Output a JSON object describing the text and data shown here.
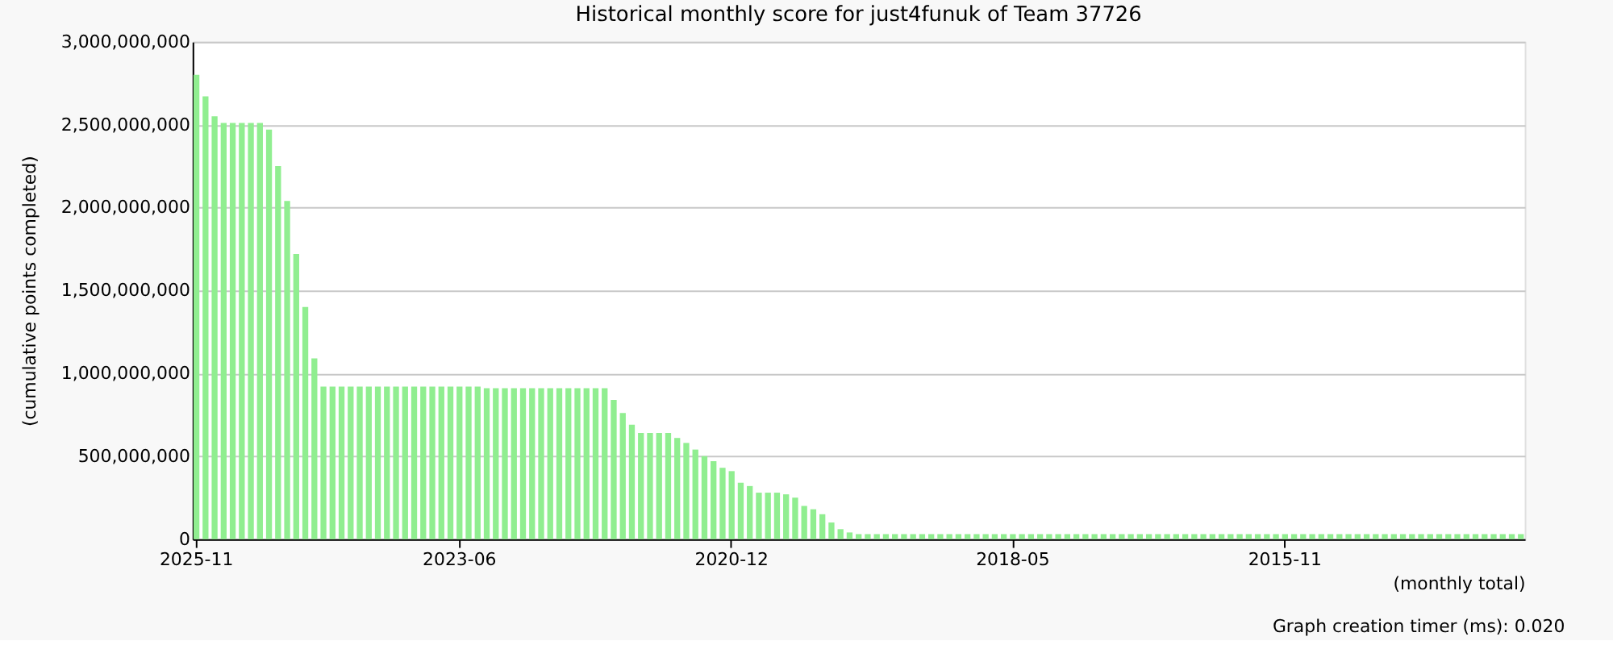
{
  "chart_data": {
    "type": "bar",
    "title": "Historical monthly score for just4funuk of Team 37726",
    "xlabel": "(monthly total)",
    "ylabel": "(cumulative points completed)",
    "annotations": [
      "Graph creation timer (ms): 0.020"
    ],
    "categories": [
      "2025-11",
      null,
      null,
      null,
      null,
      null,
      null,
      null,
      null,
      null,
      null,
      null,
      null,
      null,
      null,
      null,
      null,
      null,
      null,
      null,
      null,
      null,
      null,
      null,
      null,
      null,
      null,
      null,
      null,
      "2023-06",
      null,
      null,
      null,
      null,
      null,
      null,
      null,
      null,
      null,
      null,
      null,
      null,
      null,
      null,
      null,
      null,
      null,
      null,
      null,
      null,
      null,
      null,
      null,
      null,
      null,
      null,
      null,
      null,
      null,
      "2020-12",
      null,
      null,
      null,
      null,
      null,
      null,
      null,
      null,
      null,
      null,
      null,
      null,
      null,
      null,
      null,
      null,
      null,
      null,
      null,
      null,
      null,
      null,
      null,
      null,
      null,
      null,
      null,
      null,
      null,
      null,
      "2018-05",
      null,
      null,
      null,
      null,
      null,
      null,
      null,
      null,
      null,
      null,
      null,
      null,
      null,
      null,
      null,
      null,
      null,
      null,
      null,
      null,
      null,
      null,
      null,
      null,
      null,
      null,
      null,
      null,
      null,
      "2015-11",
      null,
      null,
      null,
      null,
      null,
      null,
      null,
      null,
      null,
      null,
      null,
      null,
      null,
      null,
      null,
      null,
      null,
      null,
      null,
      null,
      null,
      null,
      null,
      null,
      null,
      null
    ],
    "values": [
      2800000000,
      2670000000,
      2550000000,
      2510000000,
      2510000000,
      2510000000,
      2510000000,
      2510000000,
      2470000000,
      2250000000,
      2040000000,
      1720000000,
      1400000000,
      1090000000,
      920000000,
      920000000,
      920000000,
      920000000,
      920000000,
      920000000,
      920000000,
      920000000,
      920000000,
      920000000,
      920000000,
      920000000,
      920000000,
      920000000,
      920000000,
      920000000,
      920000000,
      920000000,
      910000000,
      910000000,
      910000000,
      910000000,
      910000000,
      910000000,
      910000000,
      910000000,
      910000000,
      910000000,
      910000000,
      910000000,
      910000000,
      910000000,
      840000000,
      760000000,
      690000000,
      640000000,
      640000000,
      640000000,
      640000000,
      610000000,
      580000000,
      540000000,
      500000000,
      470000000,
      430000000,
      410000000,
      340000000,
      320000000,
      280000000,
      280000000,
      280000000,
      270000000,
      250000000,
      200000000,
      180000000,
      150000000,
      100000000,
      60000000,
      40000000,
      30000000,
      30000000,
      30000000,
      30000000,
      30000000,
      30000000,
      30000000,
      30000000,
      30000000,
      30000000,
      30000000,
      30000000,
      30000000,
      30000000,
      30000000,
      30000000,
      30000000,
      30000000,
      30000000,
      30000000,
      30000000,
      30000000,
      30000000,
      30000000,
      30000000,
      30000000,
      30000000,
      30000000,
      30000000,
      30000000,
      30000000,
      30000000,
      30000000,
      30000000,
      30000000,
      30000000,
      30000000,
      30000000,
      30000000,
      30000000,
      30000000,
      30000000,
      30000000,
      30000000,
      30000000,
      30000000,
      30000000,
      30000000,
      30000000,
      30000000,
      30000000,
      30000000,
      30000000,
      30000000,
      30000000,
      30000000,
      30000000,
      30000000,
      30000000,
      30000000,
      30000000,
      30000000,
      30000000,
      30000000,
      30000000,
      30000000,
      30000000,
      30000000,
      30000000,
      30000000,
      30000000,
      30000000,
      30000000,
      30000000
    ],
    "color": "#90ee90",
    "ylim": [
      0,
      3000000000
    ],
    "yticks": [
      {
        "value": 0,
        "label": "0"
      },
      {
        "value": 500000000,
        "label": "500,000,000"
      },
      {
        "value": 1000000000,
        "label": "1,000,000,000"
      },
      {
        "value": 1500000000,
        "label": "1,500,000,000"
      },
      {
        "value": 2000000000,
        "label": "2,000,000,000"
      },
      {
        "value": 2500000000,
        "label": "2,500,000,000"
      },
      {
        "value": 3000000000,
        "label": "3,000,000,000"
      }
    ],
    "grid": "y"
  }
}
